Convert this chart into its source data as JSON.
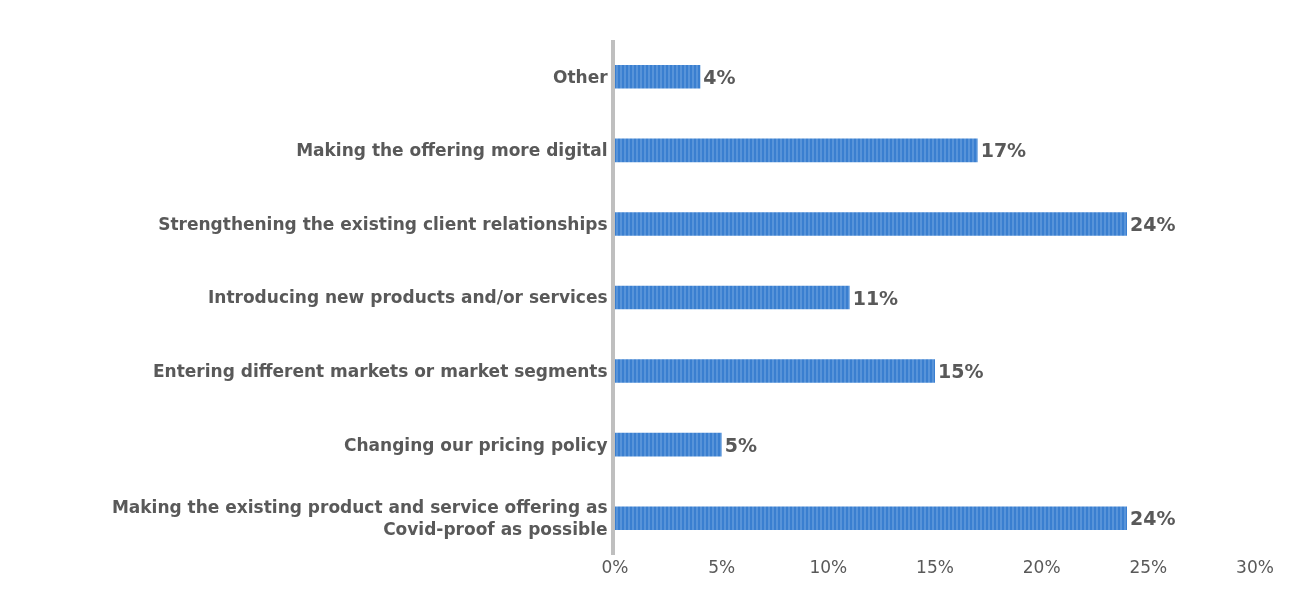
{
  "chart_data": {
    "type": "bar",
    "orientation": "horizontal",
    "categories": [
      "Other",
      "Making the offering more digital",
      "Strengthening the existing client relationships",
      "Introducing new products and/or services",
      "Entering different markets or market segments",
      "Changing our pricing policy",
      "Making the existing product and service offering as Covid-proof as possible"
    ],
    "values": [
      4,
      17,
      24,
      11,
      15,
      5,
      24
    ],
    "value_labels": [
      "4%",
      "17%",
      "24%",
      "11%",
      "15%",
      "5%",
      "24%"
    ],
    "color": "#3a7fd0",
    "xlim": [
      0,
      30
    ],
    "xticks": [
      {
        "value": 0,
        "label": "0%"
      },
      {
        "value": 5,
        "label": "5%"
      },
      {
        "value": 10,
        "label": "10%"
      },
      {
        "value": 15,
        "label": "15%"
      },
      {
        "value": 20,
        "label": "20%"
      },
      {
        "value": 25,
        "label": "25%"
      },
      {
        "value": 30,
        "label": "30%"
      }
    ]
  }
}
